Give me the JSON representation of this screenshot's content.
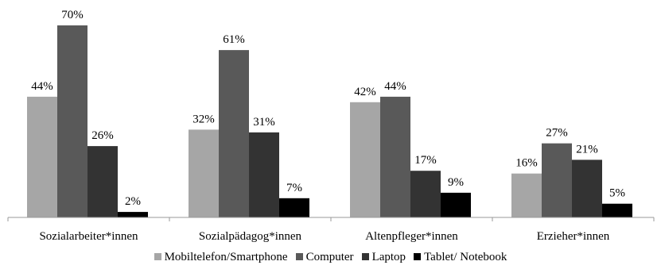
{
  "chart_data": {
    "type": "bar",
    "categories": [
      "Sozialarbeiter*innen",
      "Sozialpädagog*innen",
      "Altenpfleger*innen",
      "Erzieher*innen"
    ],
    "series": [
      {
        "name": "Mobiltelefon/Smartphone",
        "values": [
          44,
          32,
          42,
          16
        ],
        "color": "#a6a6a6"
      },
      {
        "name": "Computer",
        "values": [
          70,
          61,
          44,
          27
        ],
        "color": "#595959"
      },
      {
        "name": "Laptop",
        "values": [
          26,
          31,
          17,
          21
        ],
        "color": "#333333"
      },
      {
        "name": "Tablet/ Notebook",
        "values": [
          2,
          7,
          9,
          5
        ],
        "color": "#000000"
      }
    ],
    "value_suffix": "%",
    "ylim": [
      0,
      70
    ],
    "grid": false,
    "legend_position": "bottom"
  }
}
